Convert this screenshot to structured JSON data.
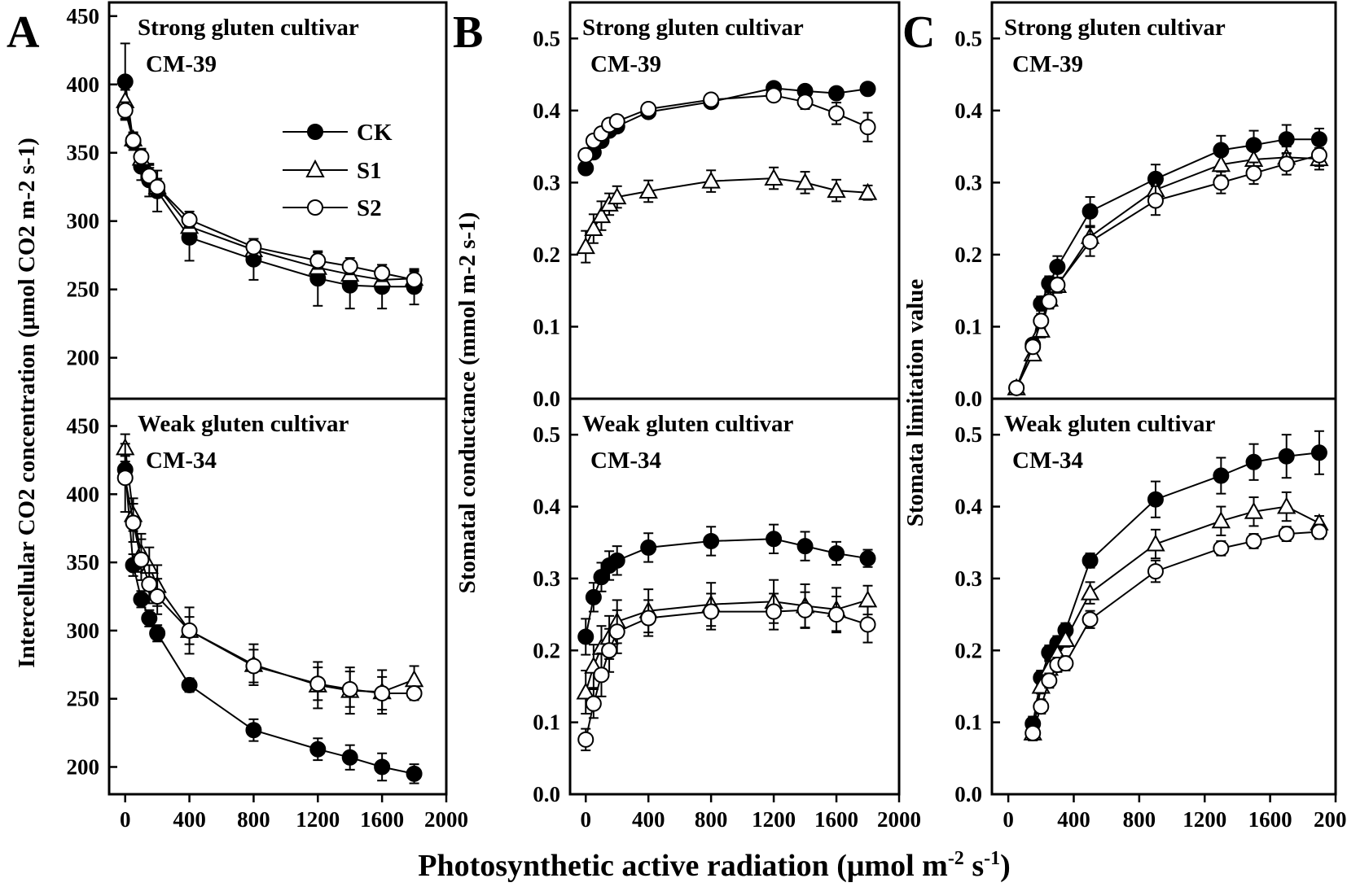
{
  "figure": {
    "xlabel": "Photosynthetic active radiation (μmol m",
    "xlabel_sup": "-2",
    "xlabel_tail": " s",
    "xlabel_sup2": "-1",
    "xlabel_end": ")",
    "legend": {
      "ck": "CK",
      "s1": "S1",
      "s2": "S2"
    },
    "colors": {
      "line": "#000000",
      "filled_marker": "#000000",
      "open_marker": "#ffffff"
    }
  },
  "chart_data": [
    {
      "id": "A-top",
      "type": "line",
      "panel_letter": "A",
      "title": "Strong gluten cultivar",
      "subtitle": "CM-39",
      "ylabel": "Intercellular CO2 concentration (μmol CO2 m-2 s-1)",
      "xlim": [
        -100,
        2000
      ],
      "ylim": [
        170,
        460
      ],
      "xticks": [
        0,
        400,
        800,
        1200,
        1600,
        2000
      ],
      "yticks": [
        200,
        250,
        300,
        350,
        400,
        450
      ],
      "show_ytick_labels": true,
      "x": [
        0,
        50,
        100,
        150,
        200,
        400,
        800,
        1200,
        1400,
        1600,
        1800
      ],
      "series": [
        {
          "name": "CK",
          "marker": "filled-circle",
          "values": [
            402,
            358,
            340,
            330,
            322,
            288,
            272,
            258,
            253,
            252,
            252
          ],
          "errors": [
            28,
            6,
            10,
            12,
            15,
            17,
            15,
            20,
            17,
            16,
            13
          ]
        },
        {
          "name": "S1",
          "marker": "open-triangle",
          "values": [
            388,
            360,
            346,
            335,
            325,
            296,
            279,
            266,
            261,
            257,
            258
          ],
          "errors": [
            8,
            5,
            6,
            6,
            6,
            6,
            6,
            6,
            6,
            6,
            6
          ]
        },
        {
          "name": "S2",
          "marker": "open-circle",
          "values": [
            381,
            359,
            347,
            333,
            325,
            301,
            281,
            271,
            267,
            262,
            257
          ],
          "errors": [
            6,
            5,
            6,
            6,
            6,
            6,
            6,
            6,
            6,
            6,
            6
          ]
        }
      ]
    },
    {
      "id": "A-bottom",
      "type": "line",
      "title": "Weak gluten cultivar",
      "subtitle": "CM-34",
      "xlim": [
        -100,
        2000
      ],
      "ylim": [
        180,
        470
      ],
      "xticks": [
        0,
        400,
        800,
        1200,
        1600,
        2000
      ],
      "yticks": [
        200,
        250,
        300,
        350,
        400,
        450
      ],
      "show_ytick_labels": true,
      "x": [
        0,
        50,
        100,
        150,
        200,
        400,
        800,
        1200,
        1400,
        1600,
        1800
      ],
      "series": [
        {
          "name": "CK",
          "marker": "filled-circle",
          "values": [
            418,
            348,
            323,
            309,
            298,
            260,
            227,
            213,
            207,
            200,
            195
          ],
          "errors": [
            10,
            8,
            6,
            6,
            6,
            5,
            8,
            8,
            9,
            10,
            7
          ]
        },
        {
          "name": "S1",
          "marker": "open-triangle",
          "values": [
            434,
            385,
            357,
            347,
            333,
            300,
            275,
            260,
            256,
            255,
            264
          ],
          "errors": [
            10,
            12,
            14,
            14,
            15,
            17,
            15,
            17,
            17,
            16,
            10
          ]
        },
        {
          "name": "S2",
          "marker": "open-circle",
          "values": [
            412,
            379,
            352,
            334,
            325,
            300,
            274,
            261,
            257,
            254,
            254
          ],
          "errors": [
            25,
            14,
            15,
            14,
            13,
            10,
            12,
            12,
            13,
            12,
            5
          ]
        }
      ]
    },
    {
      "id": "B-top",
      "type": "line",
      "panel_letter": "B",
      "title": "Strong gluten cultivar",
      "subtitle": "CM-39",
      "ylabel": "Stomatal conductance (mmol m-2 s-1)",
      "xlim": [
        -100,
        2000
      ],
      "ylim": [
        0,
        0.55
      ],
      "xticks": [
        0,
        400,
        800,
        1200,
        1600,
        2000
      ],
      "yticks": [
        0.0,
        0.1,
        0.2,
        0.3,
        0.4,
        0.5
      ],
      "show_ytick_labels": true,
      "x": [
        0,
        50,
        100,
        150,
        200,
        400,
        800,
        1200,
        1400,
        1600,
        1800
      ],
      "series": [
        {
          "name": "CK",
          "marker": "filled-circle",
          "values": [
            0.32,
            0.342,
            0.358,
            0.372,
            0.378,
            0.398,
            0.412,
            0.431,
            0.427,
            0.424,
            0.43
          ],
          "errors": [
            0.006,
            0.006,
            0.006,
            0.006,
            0.006,
            0.006,
            0.006,
            0.006,
            0.006,
            0.006,
            0.006
          ]
        },
        {
          "name": "S1",
          "marker": "open-triangle",
          "values": [
            0.211,
            0.236,
            0.254,
            0.27,
            0.28,
            0.288,
            0.302,
            0.306,
            0.3,
            0.289,
            0.286
          ],
          "errors": [
            0.022,
            0.02,
            0.02,
            0.015,
            0.015,
            0.015,
            0.015,
            0.015,
            0.015,
            0.015,
            0.01
          ]
        },
        {
          "name": "S2",
          "marker": "open-circle",
          "values": [
            0.338,
            0.358,
            0.368,
            0.38,
            0.385,
            0.402,
            0.415,
            0.421,
            0.412,
            0.396,
            0.377
          ],
          "errors": [
            0.008,
            0.008,
            0.008,
            0.008,
            0.008,
            0.008,
            0.008,
            0.008,
            0.01,
            0.015,
            0.02
          ]
        }
      ]
    },
    {
      "id": "B-bottom",
      "type": "line",
      "title": "Weak gluten cultivar",
      "subtitle": "CM-34",
      "xlim": [
        -100,
        2000
      ],
      "ylim": [
        0,
        0.55
      ],
      "xticks": [
        0,
        400,
        800,
        1200,
        1600,
        2000
      ],
      "yticks": [
        0.0,
        0.1,
        0.2,
        0.3,
        0.4,
        0.5
      ],
      "show_ytick_labels": true,
      "x": [
        0,
        50,
        100,
        150,
        200,
        400,
        800,
        1200,
        1400,
        1600,
        1800
      ],
      "series": [
        {
          "name": "CK",
          "marker": "filled-circle",
          "values": [
            0.219,
            0.274,
            0.302,
            0.318,
            0.325,
            0.343,
            0.352,
            0.355,
            0.345,
            0.335,
            0.328
          ],
          "errors": [
            0.025,
            0.02,
            0.02,
            0.02,
            0.02,
            0.02,
            0.02,
            0.02,
            0.02,
            0.016,
            0.012
          ]
        },
        {
          "name": "S1",
          "marker": "open-triangle",
          "values": [
            0.142,
            0.178,
            0.204,
            0.218,
            0.24,
            0.255,
            0.264,
            0.268,
            0.262,
            0.257,
            0.27
          ],
          "errors": [
            0.03,
            0.03,
            0.03,
            0.03,
            0.03,
            0.03,
            0.03,
            0.03,
            0.03,
            0.03,
            0.02
          ]
        },
        {
          "name": "S2",
          "marker": "open-circle",
          "values": [
            0.076,
            0.126,
            0.166,
            0.2,
            0.226,
            0.245,
            0.254,
            0.254,
            0.256,
            0.25,
            0.236
          ],
          "errors": [
            0.015,
            0.02,
            0.03,
            0.03,
            0.03,
            0.025,
            0.025,
            0.025,
            0.025,
            0.025,
            0.025
          ]
        }
      ]
    },
    {
      "id": "C-top",
      "type": "line",
      "panel_letter": "C",
      "title": "Strong gluten cultivar",
      "subtitle": "CM-39",
      "ylabel": "Stomata limitation value",
      "xlim": [
        -100,
        2000
      ],
      "ylim": [
        0,
        0.55
      ],
      "xticks": [
        0,
        400,
        800,
        1200,
        1600,
        2000
      ],
      "yticks": [
        0.0,
        0.1,
        0.2,
        0.3,
        0.4,
        0.5
      ],
      "show_ytick_labels": true,
      "x": [
        50,
        150,
        200,
        250,
        300,
        500,
        900,
        1300,
        1500,
        1700,
        1900
      ],
      "series": [
        {
          "name": "CK",
          "marker": "filled-circle",
          "values": [
            0.015,
            0.075,
            0.132,
            0.16,
            0.183,
            0.26,
            0.305,
            0.345,
            0.352,
            0.36,
            0.36
          ],
          "errors": [
            0.008,
            0.008,
            0.01,
            0.01,
            0.015,
            0.02,
            0.02,
            0.02,
            0.02,
            0.02,
            0.015
          ]
        },
        {
          "name": "S1",
          "marker": "open-triangle",
          "values": [
            0.015,
            0.062,
            0.095,
            0.138,
            0.157,
            0.225,
            0.29,
            0.325,
            0.332,
            0.335,
            0.333
          ],
          "errors": [
            0.008,
            0.008,
            0.01,
            0.01,
            0.01,
            0.015,
            0.015,
            0.015,
            0.015,
            0.015,
            0.015
          ]
        },
        {
          "name": "S2",
          "marker": "open-circle",
          "values": [
            0.015,
            0.072,
            0.108,
            0.135,
            0.158,
            0.218,
            0.275,
            0.3,
            0.313,
            0.326,
            0.338
          ],
          "errors": [
            0.008,
            0.008,
            0.01,
            0.01,
            0.01,
            0.02,
            0.02,
            0.015,
            0.015,
            0.015,
            0.015
          ]
        }
      ]
    },
    {
      "id": "C-bottom",
      "type": "line",
      "title": "Weak gluten cultivar",
      "subtitle": "CM-34",
      "xlim": [
        -100,
        2000
      ],
      "ylim": [
        0,
        0.55
      ],
      "xticks": [
        0,
        400,
        800,
        1200,
        1600,
        2000
      ],
      "yticks": [
        0.0,
        0.1,
        0.2,
        0.3,
        0.4,
        0.5
      ],
      "show_ytick_labels": true,
      "x": [
        150,
        200,
        250,
        300,
        350,
        500,
        900,
        1300,
        1500,
        1700,
        1900
      ],
      "series": [
        {
          "name": "CK",
          "marker": "filled-circle",
          "values": [
            0.098,
            0.162,
            0.197,
            0.21,
            0.228,
            0.325,
            0.41,
            0.443,
            0.462,
            0.47,
            0.475
          ],
          "errors": [
            0.01,
            0.01,
            0.01,
            0.01,
            0.01,
            0.01,
            0.025,
            0.025,
            0.025,
            0.03,
            0.03
          ]
        },
        {
          "name": "S1",
          "marker": "open-triangle",
          "values": [
            0.085,
            0.15,
            0.175,
            0.195,
            0.215,
            0.28,
            0.348,
            0.38,
            0.393,
            0.4,
            0.377
          ],
          "errors": [
            0.01,
            0.01,
            0.01,
            0.01,
            0.01,
            0.015,
            0.02,
            0.02,
            0.02,
            0.02,
            0.01
          ]
        },
        {
          "name": "S2",
          "marker": "open-circle",
          "values": [
            0.085,
            0.122,
            0.158,
            0.18,
            0.182,
            0.243,
            0.31,
            0.342,
            0.352,
            0.362,
            0.365
          ],
          "errors": [
            0.01,
            0.01,
            0.01,
            0.01,
            0.01,
            0.012,
            0.015,
            0.01,
            0.01,
            0.01,
            0.01
          ]
        }
      ]
    }
  ]
}
